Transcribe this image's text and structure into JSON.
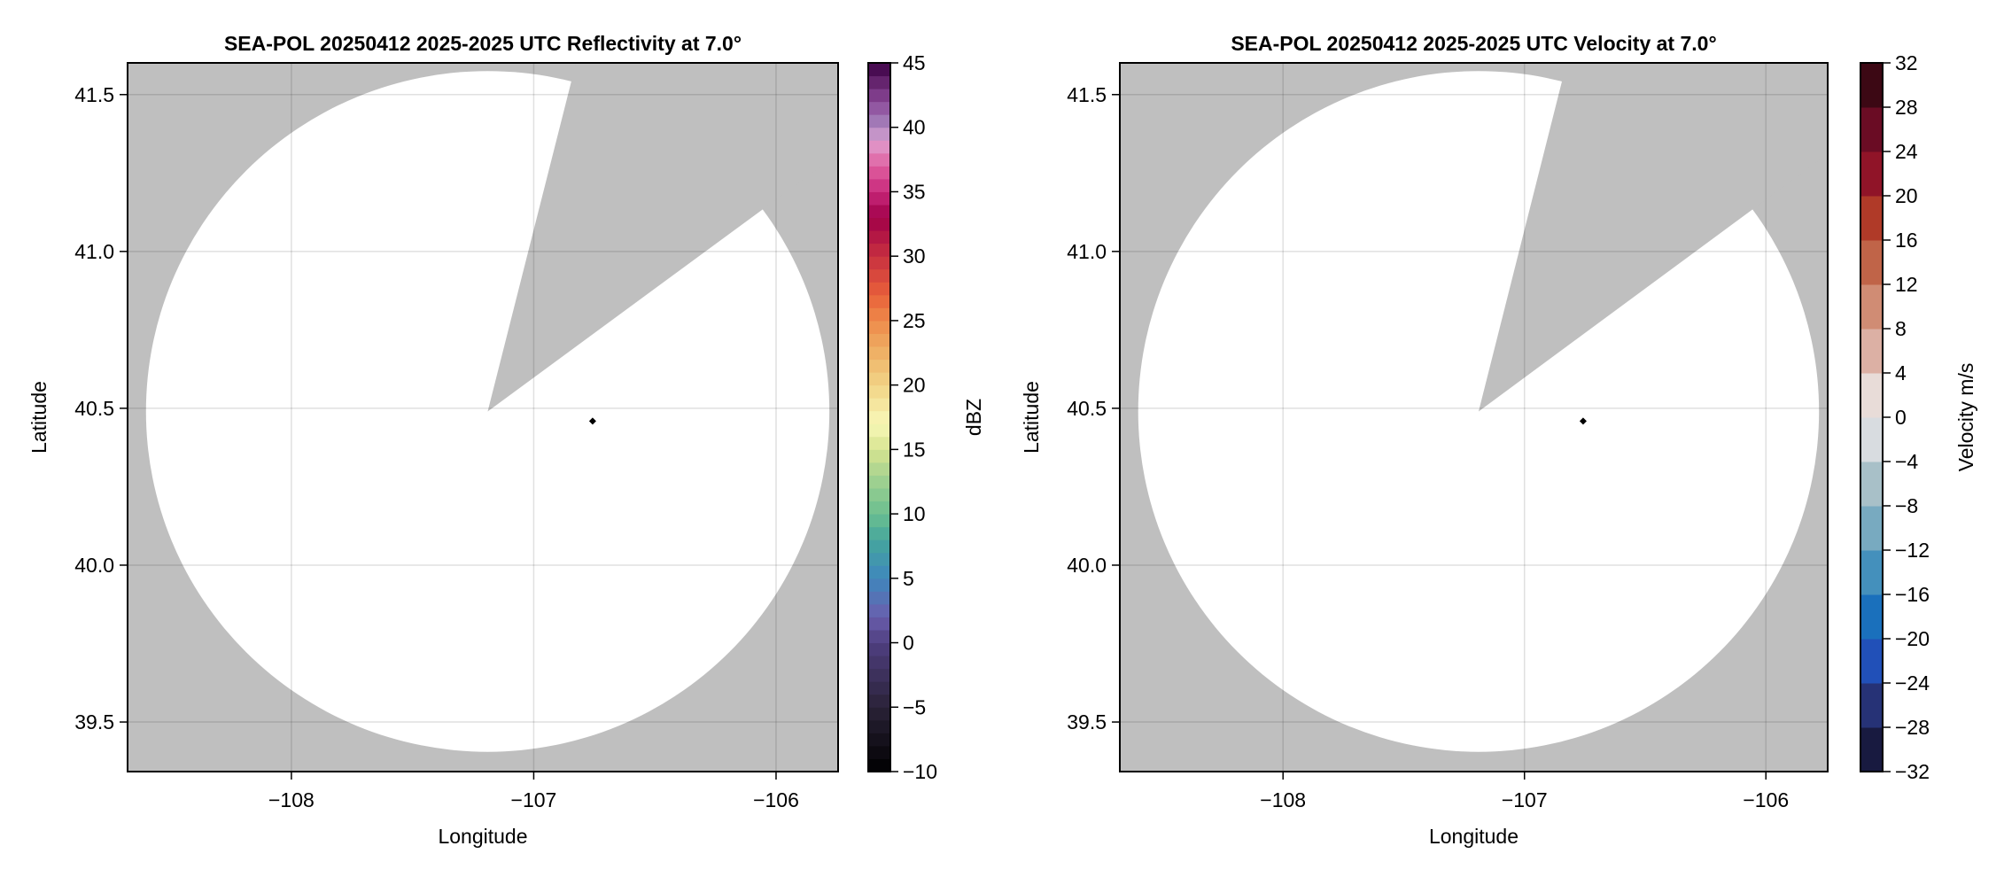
{
  "background_color": "#bfbfbf",
  "echo_color": "#ffffff",
  "chart_data": [
    {
      "type": "heatmap",
      "title": "SEA-POL 20250412 2025-2025 UTC Reflectivity at 7.0°",
      "xlabel": "Longitude",
      "ylabel": "Latitude",
      "xlim": [
        -108.676,
        -105.744
      ],
      "ylim": [
        39.342,
        41.601
      ],
      "xticks": [
        -108,
        -107,
        -106
      ],
      "xtick_labels": [
        "−108",
        "−107",
        "−106"
      ],
      "yticks": [
        39.5,
        40.0,
        40.5,
        41.0,
        41.5
      ],
      "ytick_labels": [
        "39.5",
        "40.0",
        "40.5",
        "41.0",
        "41.5"
      ],
      "grid": true,
      "radar_site": {
        "lon": -107.19,
        "lat": 40.49
      },
      "coverage_radius_deg": {
        "lon": 1.41,
        "lat": 1.085
      },
      "blocked_sector_edges": [
        {
          "lon": -106.852,
          "lat": 41.52
        },
        {
          "lon": -106.08,
          "lat": 41.12
        }
      ],
      "marker": {
        "lon": -106.757,
        "lat": 40.459
      },
      "colorbar": {
        "label": "dBZ",
        "range": [
          -10,
          45
        ],
        "step": 1,
        "ticks": [
          -10,
          -5,
          0,
          5,
          10,
          15,
          20,
          25,
          30,
          35,
          40,
          45
        ],
        "tick_labels": [
          "−10",
          "−5",
          "0",
          "5",
          "10",
          "15",
          "20",
          "25",
          "30",
          "35",
          "40",
          "45"
        ],
        "color_stops": [
          [
            -10,
            "#000000"
          ],
          [
            -5,
            "#2a2238"
          ],
          [
            0,
            "#4f3f80"
          ],
          [
            2,
            "#6a5ead"
          ],
          [
            5,
            "#3f87bd"
          ],
          [
            8,
            "#45a69d"
          ],
          [
            10,
            "#6bbf90"
          ],
          [
            13,
            "#a7d390"
          ],
          [
            15,
            "#d7e490"
          ],
          [
            17,
            "#f8f8b8"
          ],
          [
            20,
            "#f2d486"
          ],
          [
            23,
            "#eeaa60"
          ],
          [
            25,
            "#ee8a4a"
          ],
          [
            27,
            "#e8603a"
          ],
          [
            30,
            "#c83040"
          ],
          [
            33,
            "#a00048"
          ],
          [
            35,
            "#c8287a"
          ],
          [
            37,
            "#e060a0"
          ],
          [
            39,
            "#e0a0d0"
          ],
          [
            40,
            "#a888c0"
          ],
          [
            42,
            "#8a4898"
          ],
          [
            44,
            "#581860"
          ],
          [
            45,
            "#3a0044"
          ]
        ]
      }
    },
    {
      "type": "heatmap",
      "title": "SEA-POL 20250412 2025-2025 UTC Velocity at 7.0°",
      "xlabel": "Longitude",
      "ylabel": "Latitude",
      "xlim": [
        -108.676,
        -105.744
      ],
      "ylim": [
        39.342,
        41.601
      ],
      "xticks": [
        -108,
        -107,
        -106
      ],
      "xtick_labels": [
        "−108",
        "−107",
        "−106"
      ],
      "yticks": [
        39.5,
        40.0,
        40.5,
        41.0,
        41.5
      ],
      "ytick_labels": [
        "39.5",
        "40.0",
        "40.5",
        "41.0",
        "41.5"
      ],
      "grid": true,
      "radar_site": {
        "lon": -107.19,
        "lat": 40.49
      },
      "coverage_radius_deg": {
        "lon": 1.41,
        "lat": 1.085
      },
      "blocked_sector_edges": [
        {
          "lon": -106.852,
          "lat": 41.52
        },
        {
          "lon": -106.08,
          "lat": 41.12
        }
      ],
      "marker": {
        "lon": -106.757,
        "lat": 40.459
      },
      "colorbar": {
        "label": "Velocity m/s",
        "range": [
          -32,
          32
        ],
        "step": 4,
        "ticks": [
          -32,
          -28,
          -24,
          -20,
          -16,
          -12,
          -8,
          -4,
          0,
          4,
          8,
          12,
          16,
          20,
          24,
          28,
          32
        ],
        "tick_labels": [
          "−32",
          "−28",
          "−24",
          "−20",
          "−16",
          "−12",
          "−8",
          "−4",
          "0",
          "4",
          "8",
          "12",
          "16",
          "20",
          "24",
          "28",
          "32"
        ],
        "bin_colors": [
          "#181a40",
          "#263276",
          "#2150b8",
          "#1a70bc",
          "#4490bc",
          "#78aac0",
          "#a8c0c8",
          "#d8dce0",
          "#e8dcd8",
          "#dcb0a4",
          "#d08c74",
          "#c06448",
          "#b03a28",
          "#901428",
          "#6a0c24",
          "#3c0814"
        ]
      }
    }
  ]
}
